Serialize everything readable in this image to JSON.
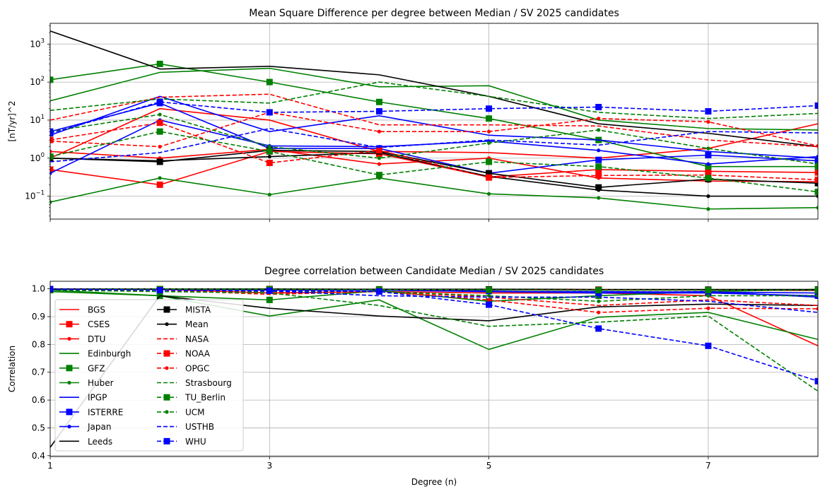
{
  "chart_data": [
    {
      "type": "line",
      "title": "Mean Square Difference per degree between Median / SV 2025 candidates",
      "xlabel": "",
      "ylabel": "[nT/yr]^2",
      "xlim": [
        1,
        8
      ],
      "ylim": [
        0.025,
        3500
      ],
      "yscale": "log",
      "grid": true,
      "x": [
        1,
        2,
        3,
        4,
        5,
        6,
        7,
        8
      ],
      "xticks": [
        1,
        3,
        5,
        7
      ],
      "yticks": [
        {
          "value": 0.1,
          "base": "10",
          "exp": "−1"
        },
        {
          "value": 1,
          "base": "10",
          "exp": "0"
        },
        {
          "value": 10,
          "base": "10",
          "exp": "1"
        },
        {
          "value": 100,
          "base": "10",
          "exp": "2"
        },
        {
          "value": 1000,
          "base": "10",
          "exp": "3"
        }
      ],
      "series": [
        {
          "name": "BGS",
          "values": [
            1.0,
            20,
            10,
            1.5,
            1.4,
            1.0,
            1.8,
            8.0
          ]
        },
        {
          "name": "CSES",
          "values": [
            0.5,
            0.2,
            1.5,
            1.3,
            0.32,
            0.5,
            0.45,
            0.42
          ]
        },
        {
          "name": "DTU",
          "values": [
            1.5,
            1.0,
            1.7,
            0.7,
            1.0,
            0.3,
            0.25,
            0.24
          ]
        },
        {
          "name": "Edinburgh",
          "values": [
            32,
            180,
            230,
            75,
            80,
            10,
            6.0,
            5.5
          ]
        },
        {
          "name": "GFZ",
          "values": [
            115,
            300,
            100,
            30,
            11,
            3.0,
            0.6,
            0.6
          ]
        },
        {
          "name": "Huber",
          "values": [
            0.07,
            0.3,
            0.11,
            0.3,
            0.115,
            0.09,
            0.046,
            0.05
          ]
        },
        {
          "name": "IPGP",
          "values": [
            4.0,
            42,
            5.0,
            13,
            4.0,
            3.0,
            1.5,
            1.0
          ]
        },
        {
          "name": "ISTERRE",
          "values": [
            5.0,
            28,
            1.8,
            1.8,
            0.4,
            0.9,
            1.2,
            0.85
          ]
        },
        {
          "name": "Japan",
          "values": [
            0.4,
            10,
            2.1,
            2.0,
            2.8,
            1.6,
            0.7,
            1.1
          ]
        },
        {
          "name": "Leeds",
          "values": [
            2200,
            220,
            260,
            155,
            42,
            8.0,
            4.5,
            2.0
          ]
        },
        {
          "name": "MISTA",
          "values": [
            1.0,
            0.8,
            1.6,
            1.5,
            0.4,
            0.17,
            0.28,
            0.22
          ]
        },
        {
          "name": "Mean",
          "values": [
            1.0,
            0.85,
            1.1,
            1.4,
            0.33,
            0.145,
            0.1,
            0.1
          ]
        },
        {
          "name": "NASA",
          "values": [
            10,
            40,
            48,
            7.5,
            7.5,
            7.0,
            3.0,
            2.0
          ]
        },
        {
          "name": "NOAA",
          "values": [
            3.0,
            8.5,
            0.75,
            1.6,
            0.31,
            0.35,
            0.36,
            0.27
          ]
        },
        {
          "name": "OPGC",
          "values": [
            2.8,
            2.0,
            16,
            5.0,
            5.0,
            11,
            9.0,
            2.1
          ]
        },
        {
          "name": "Strasbourg",
          "values": [
            18,
            36,
            28,
            100,
            42,
            16,
            11,
            15
          ]
        },
        {
          "name": "TU_Berlin",
          "values": [
            1.1,
            5.0,
            1.5,
            0.36,
            0.8,
            0.6,
            0.3,
            0.13
          ]
        },
        {
          "name": "UCM",
          "values": [
            5.0,
            14,
            2.0,
            1.0,
            2.5,
            5.5,
            1.8,
            0.7
          ]
        },
        {
          "name": "USTHB",
          "values": [
            0.8,
            1.4,
            6.0,
            1.9,
            3.0,
            2.2,
            5.0,
            4.6
          ]
        },
        {
          "name": "WHU",
          "values": [
            4.5,
            30,
            16,
            17,
            20,
            22,
            17,
            24
          ]
        }
      ]
    },
    {
      "type": "line",
      "title": "Degree correlation between Candidate Median / SV 2025 candidates",
      "xlabel": "Degree (n)",
      "ylabel": "Correlation",
      "xlim": [
        1,
        8
      ],
      "ylim": [
        0.397,
        1.027
      ],
      "grid": true,
      "legend": "lower-left",
      "legend_columns": 2,
      "x": [
        1,
        2,
        3,
        4,
        5,
        6,
        7,
        8
      ],
      "xticks": [
        1,
        3,
        5,
        7
      ],
      "yticks": [
        0.4,
        0.5,
        0.6,
        0.7,
        0.8,
        0.9,
        1.0
      ],
      "series": [
        {
          "name": "BGS",
          "values": [
            0.999,
            0.998,
            0.985,
            0.99,
            0.985,
            0.985,
            0.975,
            0.795
          ]
        },
        {
          "name": "CSES",
          "values": [
            0.999,
            0.999,
            0.998,
            0.998,
            0.997,
            0.996,
            0.996,
            0.994
          ]
        },
        {
          "name": "DTU",
          "values": [
            0.999,
            0.999,
            0.998,
            0.998,
            0.997,
            0.996,
            0.996,
            0.995
          ]
        },
        {
          "name": "Edinburgh",
          "values": [
            0.99,
            0.975,
            0.902,
            0.96,
            0.782,
            0.898,
            0.915,
            0.818
          ]
        },
        {
          "name": "GFZ",
          "values": [
            0.995,
            0.975,
            0.96,
            0.993,
            0.955,
            0.975,
            0.99,
            0.998
          ]
        },
        {
          "name": "Huber",
          "values": [
            0.999,
            0.999,
            0.999,
            0.998,
            0.998,
            0.997,
            0.997,
            0.997
          ]
        },
        {
          "name": "IPGP",
          "values": [
            0.999,
            0.998,
            0.995,
            0.995,
            0.99,
            0.985,
            0.99,
            0.97
          ]
        },
        {
          "name": "ISTERRE",
          "values": [
            0.999,
            0.999,
            0.998,
            0.997,
            0.992,
            0.985,
            0.985,
            0.975
          ]
        },
        {
          "name": "Japan",
          "values": [
            0.999,
            0.999,
            0.998,
            0.997,
            0.99,
            0.99,
            0.988,
            0.985
          ]
        },
        {
          "name": "Leeds",
          "values": [
            0.43,
            0.975,
            0.93,
            0.902,
            0.885,
            0.935,
            0.945,
            0.94
          ]
        },
        {
          "name": "MISTA",
          "values": [
            0.999,
            0.999,
            0.999,
            0.998,
            0.998,
            0.997,
            0.997,
            0.996
          ]
        },
        {
          "name": "Mean",
          "values": [
            0.999,
            0.999,
            0.999,
            0.998,
            0.998,
            0.997,
            0.997,
            0.997
          ]
        },
        {
          "name": "NASA",
          "values": [
            0.995,
            0.995,
            0.98,
            0.99,
            0.97,
            0.94,
            0.96,
            0.94
          ]
        },
        {
          "name": "NOAA",
          "values": [
            0.999,
            0.999,
            0.998,
            0.997,
            0.996,
            0.996,
            0.995,
            0.994
          ]
        },
        {
          "name": "OPGC",
          "values": [
            0.998,
            0.998,
            0.985,
            0.99,
            0.96,
            0.915,
            0.93,
            0.928
          ]
        },
        {
          "name": "Strasbourg",
          "values": [
            0.995,
            0.99,
            0.985,
            0.94,
            0.865,
            0.88,
            0.902,
            0.632
          ]
        },
        {
          "name": "TU_Berlin",
          "values": [
            0.999,
            0.999,
            0.998,
            0.997,
            0.996,
            0.995,
            0.995,
            0.995
          ]
        },
        {
          "name": "UCM",
          "values": [
            0.998,
            0.997,
            0.99,
            0.99,
            0.975,
            0.955,
            0.975,
            0.975
          ]
        },
        {
          "name": "USTHB",
          "values": [
            0.998,
            0.995,
            0.992,
            0.975,
            0.97,
            0.97,
            0.955,
            0.915
          ]
        },
        {
          "name": "WHU",
          "values": [
            0.999,
            0.995,
            0.993,
            0.99,
            0.943,
            0.857,
            0.795,
            0.668
          ]
        }
      ]
    }
  ]
}
